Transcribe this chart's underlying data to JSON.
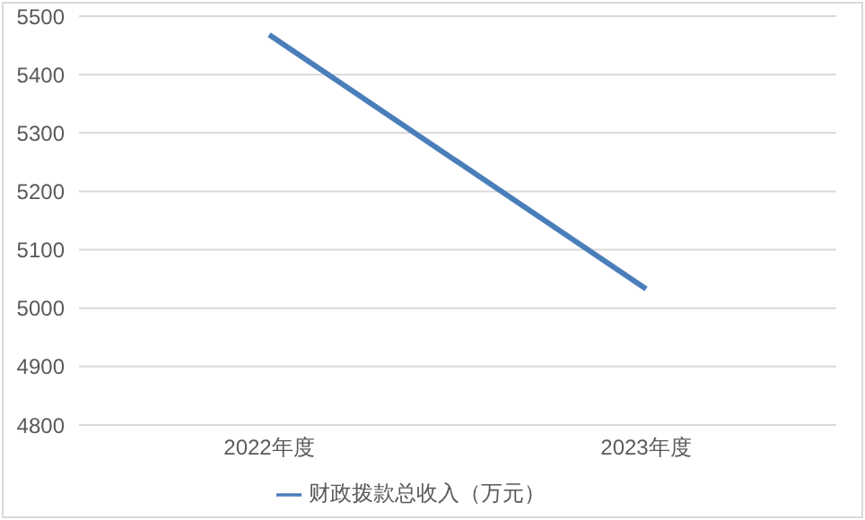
{
  "chart_data": {
    "type": "line",
    "categories": [
      "2022年度",
      "2023年度"
    ],
    "series": [
      {
        "name": "财政拨款总收入（万元）",
        "color": "#4a7ebb",
        "values": [
          5468,
          5033
        ]
      }
    ],
    "ylim": [
      4800,
      5500
    ],
    "yticks": [
      4800,
      4900,
      5000,
      5100,
      5200,
      5300,
      5400,
      5500
    ],
    "grid": "y",
    "legend": "bottom",
    "marker": "none"
  }
}
